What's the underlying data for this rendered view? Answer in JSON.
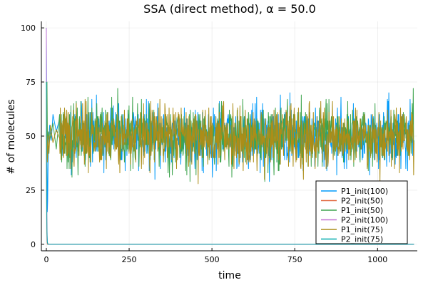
{
  "chart_data": {
    "type": "line",
    "title": "SSA (direct method), α = 50.0",
    "xlabel": "time",
    "ylabel": "# of molecules",
    "xlim": [
      -15,
      1120
    ],
    "ylim": [
      -3,
      103
    ],
    "xticks": [
      0,
      250,
      500,
      750,
      1000
    ],
    "yticks": [
      0,
      25,
      50,
      75,
      100
    ],
    "grid": true,
    "legend_position": "bottom-right",
    "noise": {
      "t_max": 1110,
      "n_points": 1000,
      "center": 50,
      "spread": 7,
      "min": 20,
      "max": 78
    },
    "series": [
      {
        "name": "P1_init(100)",
        "color": "#009AFA",
        "x": [
          0,
          1,
          2,
          3,
          4,
          5,
          6,
          8,
          10,
          15,
          20,
          30,
          40
        ],
        "y": [
          100,
          70,
          40,
          15,
          20,
          35,
          45,
          50,
          55,
          48,
          60,
          52,
          58
        ],
        "noisy_after": 40,
        "seed": 11
      },
      {
        "name": "P2_init(50)",
        "color": "#E36F47",
        "x": [
          0,
          1,
          2,
          3,
          4,
          1110
        ],
        "y": [
          50,
          12,
          2,
          0,
          0,
          0
        ],
        "noisy_after": null,
        "seed": null
      },
      {
        "name": "P1_init(50)",
        "color": "#3EA44E",
        "x": [
          0,
          1,
          2,
          3,
          4,
          6,
          10,
          20,
          30,
          40
        ],
        "y": [
          50,
          62,
          75,
          55,
          40,
          52,
          48,
          56,
          44,
          60
        ],
        "noisy_after": 40,
        "seed": 23
      },
      {
        "name": "P2_init(100)",
        "color": "#C371D2",
        "x": [
          0,
          1,
          2,
          3,
          5,
          1110
        ],
        "y": [
          100,
          30,
          8,
          1,
          0,
          0
        ],
        "noisy_after": null,
        "seed": null
      },
      {
        "name": "P1_init(75)",
        "color": "#AC8D18",
        "x": [
          0,
          1,
          2,
          3,
          5,
          8,
          12,
          20,
          30,
          40
        ],
        "y": [
          75,
          60,
          45,
          38,
          50,
          42,
          55,
          47,
          53,
          49
        ],
        "noisy_after": 40,
        "seed": 37
      },
      {
        "name": "P2_init(75)",
        "color": "#00A9AD",
        "x": [
          0,
          1,
          2,
          3,
          5,
          1110
        ],
        "y": [
          75,
          20,
          5,
          1,
          0,
          0
        ],
        "noisy_after": null,
        "seed": null
      }
    ]
  }
}
